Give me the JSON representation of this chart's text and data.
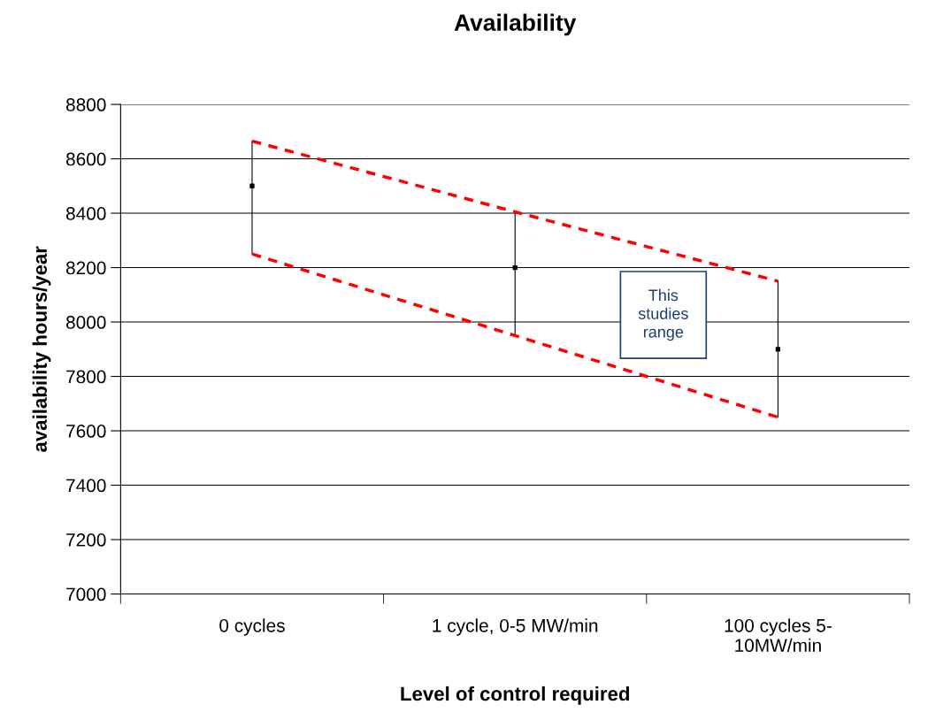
{
  "chart_data": {
    "type": "scatter",
    "title": "Availability",
    "xlabel": "Level of control required",
    "ylabel": "availability hours/year",
    "categories": [
      "0 cycles",
      "1 cycle, 0-5 MW/min",
      "100 cycles 5-\n10MW/min"
    ],
    "series": [
      {
        "color": "#000000",
        "values": [
          8500,
          8200,
          7900
        ],
        "errors": [
          [
            8250,
            8665
          ],
          [
            7950,
            8405
          ],
          [
            7650,
            8150
          ]
        ],
        "marker": "square"
      },
      {
        "type": "line",
        "color": "#ff0000",
        "x": [
          "0 cycles",
          "1 cycle, 0-5 MW/min",
          "100 cycles 5-\n10MW/min"
        ],
        "values": [
          8665,
          8405,
          8150
        ],
        "line_style": "dashed"
      },
      {
        "type": "line",
        "color": "#ff0000",
        "x": [
          "0 cycles",
          "1 cycle, 0-5 MW/min",
          "100 cycles 5-\n10MW/min"
        ],
        "values": [
          8250,
          7950,
          7650
        ],
        "line_style": "dashed"
      }
    ],
    "ylim": [
      7000,
      8800
    ],
    "yticks": [
      7000,
      7200,
      7400,
      7600,
      7800,
      8000,
      8200,
      8400,
      8600,
      8800
    ],
    "grid": "y",
    "legend": false,
    "annotations": [
      "This\nstudies\nrange"
    ]
  }
}
